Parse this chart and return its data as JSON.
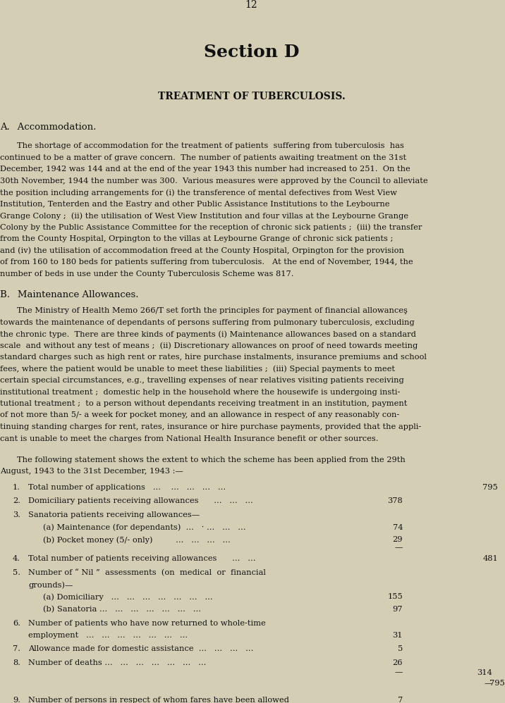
{
  "bg_color": "#d4ceb5",
  "text_color": "#111111",
  "page_number": "12",
  "section_title": "Section D",
  "subtitle": "TREATMENT OF TUBERCULOSIS.",
  "section_a_heading": "A. Accommodation.",
  "section_b_heading": "B. Maintenance Allowances.",
  "following_statement": "The following statement shows the extent to which the scheme has been applied from the 29th\nAugust, 1943 to the 31st December, 1943 :—"
}
